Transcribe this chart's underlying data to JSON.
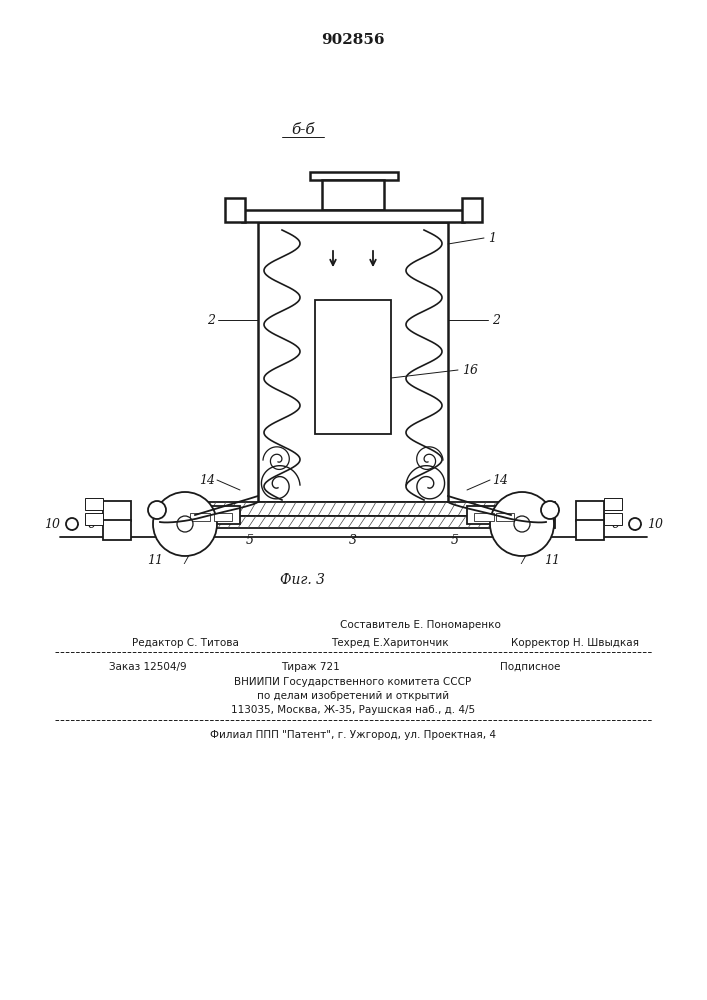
{
  "patent_number": "902856",
  "section_label": "б-б",
  "fig_label": "Фиг. 3",
  "bottom_text_line1": "Составитель Е. Пономаренко",
  "bottom_text_line2_left": "Редактор С. Титова",
  "bottom_text_line2_mid": "Техред Е.Харитончик",
  "bottom_text_line2_right": "Корректор Н. Швыдкая",
  "bottom_text_line3_left": "Заказ 12504/9",
  "bottom_text_line3_mid": "Тираж 721",
  "bottom_text_line3_right": "Подписное",
  "bottom_text_line4": "ВНИИПИ Государственного комитета СССР",
  "bottom_text_line5": "по делам изобретений и открытий",
  "bottom_text_line6": "113035, Москва, Ж-35, Раушская наб., д. 4/5",
  "bottom_text_line7": "Филиал ППП \"Патент\", г. Ужгород, ул. Проектная, 4",
  "bg_color": "#ffffff",
  "line_color": "#1a1a1a"
}
